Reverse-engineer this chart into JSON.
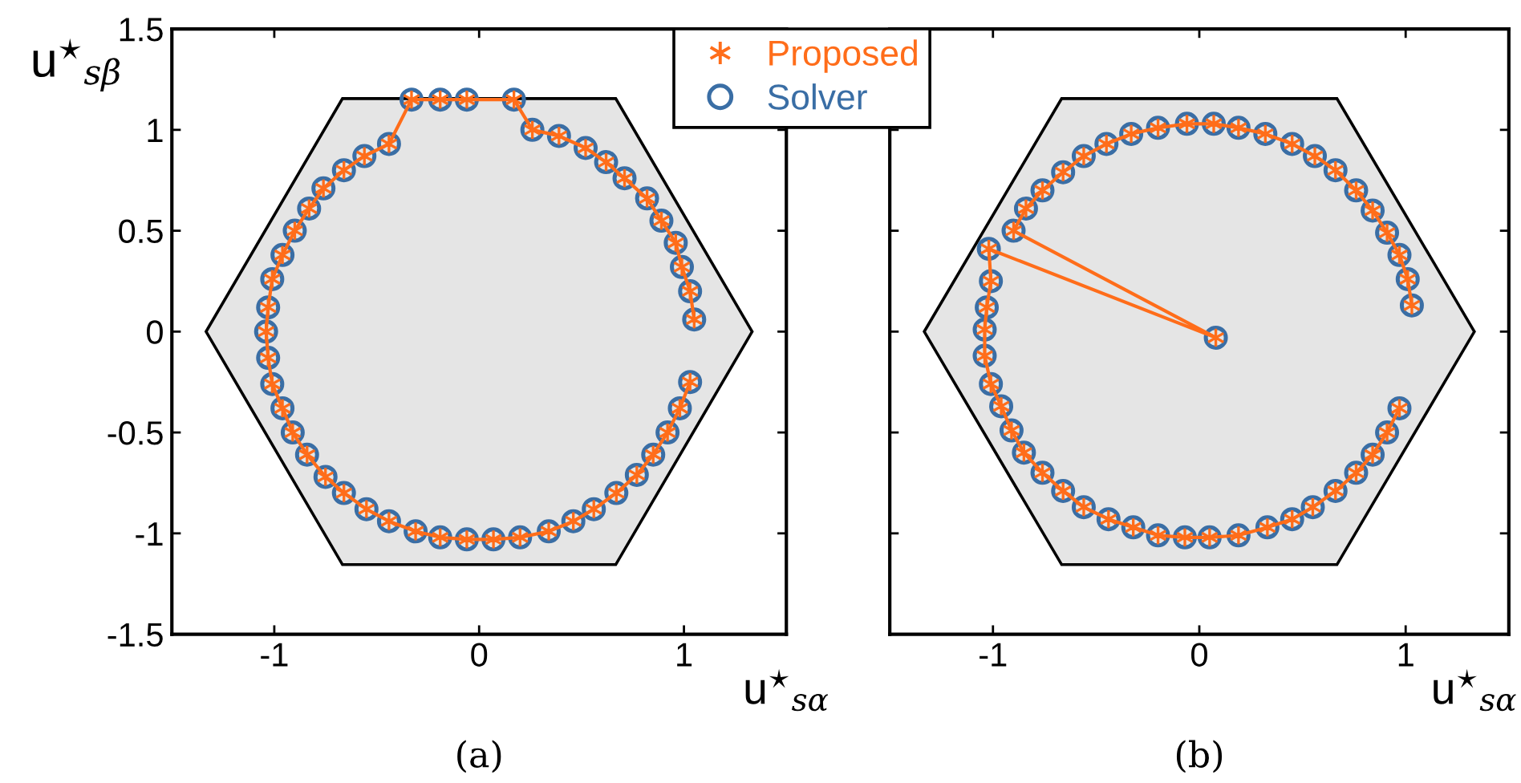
{
  "chart_data": [
    {
      "type": "scatter",
      "xlabel": "u$^{⋆}$$_{sα}$",
      "ylabel": "u$^{⋆}$$_{sβ}$",
      "annotations": [
        "(a)"
      ],
      "xlim": [
        -1.5,
        1.5
      ],
      "ylim": [
        -1.5,
        1.5
      ],
      "xticks": [
        -1,
        0,
        1
      ],
      "yticks": [
        -1.5,
        -1,
        -0.5,
        0,
        0.5,
        1,
        1.5
      ],
      "grid": false,
      "legend": "top right",
      "series": [
        {
          "type": "area",
          "color": "#e5e5e5",
          "x": [
            1.333,
            0.667,
            -0.667,
            -1.333,
            -0.667,
            0.667,
            1.333
          ],
          "values": [
            0,
            1.155,
            1.155,
            0,
            -1.155,
            -1.155,
            0
          ]
        },
        {
          "name": "Proposed",
          "type": "line",
          "marker": "cross",
          "color": "#ff6d1a",
          "x": [
            1.05,
            1.03,
            0.99,
            0.96,
            0.89,
            0.82,
            0.71,
            0.62,
            0.52,
            0.39,
            0.26,
            0.17,
            -0.06,
            -0.19,
            -0.33,
            -0.44,
            -0.56,
            -0.66,
            -0.76,
            -0.83,
            -0.9,
            -0.96,
            -1.01,
            -1.03,
            -1.04,
            -1.03,
            -1.01,
            -0.96,
            -0.91,
            -0.84,
            -0.75,
            -0.66,
            -0.55,
            -0.44,
            -0.31,
            -0.19,
            -0.06,
            0.07,
            0.2,
            0.34,
            0.46,
            0.56,
            0.67,
            0.77,
            0.85,
            0.92,
            0.98,
            1.03
          ],
          "values": [
            0.06,
            0.2,
            0.32,
            0.44,
            0.55,
            0.66,
            0.76,
            0.84,
            0.91,
            0.97,
            1.0,
            1.15,
            1.15,
            1.15,
            1.15,
            0.93,
            0.87,
            0.8,
            0.71,
            0.61,
            0.5,
            0.38,
            0.26,
            0.12,
            0.0,
            -0.13,
            -0.26,
            -0.38,
            -0.5,
            -0.61,
            -0.72,
            -0.8,
            -0.88,
            -0.94,
            -0.99,
            -1.02,
            -1.03,
            -1.03,
            -1.02,
            -0.99,
            -0.94,
            -0.88,
            -0.8,
            -0.71,
            -0.61,
            -0.5,
            -0.38,
            -0.25
          ]
        },
        {
          "name": "Solver",
          "marker": "circle",
          "color": "#3a6ea5",
          "x": [
            1.05,
            1.03,
            0.99,
            0.96,
            0.89,
            0.82,
            0.71,
            0.62,
            0.52,
            0.39,
            0.26,
            0.17,
            -0.06,
            -0.19,
            -0.33,
            -0.44,
            -0.56,
            -0.66,
            -0.76,
            -0.83,
            -0.9,
            -0.96,
            -1.01,
            -1.03,
            -1.04,
            -1.03,
            -1.01,
            -0.96,
            -0.91,
            -0.84,
            -0.75,
            -0.66,
            -0.55,
            -0.44,
            -0.31,
            -0.19,
            -0.06,
            0.07,
            0.2,
            0.34,
            0.46,
            0.56,
            0.67,
            0.77,
            0.85,
            0.92,
            0.98,
            1.03
          ],
          "values": [
            0.06,
            0.2,
            0.32,
            0.44,
            0.55,
            0.66,
            0.76,
            0.84,
            0.91,
            0.97,
            1.0,
            1.15,
            1.15,
            1.15,
            1.15,
            0.93,
            0.87,
            0.8,
            0.71,
            0.61,
            0.5,
            0.38,
            0.26,
            0.12,
            0.0,
            -0.13,
            -0.26,
            -0.38,
            -0.5,
            -0.61,
            -0.72,
            -0.8,
            -0.88,
            -0.94,
            -0.99,
            -1.02,
            -1.03,
            -1.03,
            -1.02,
            -0.99,
            -0.94,
            -0.88,
            -0.8,
            -0.71,
            -0.61,
            -0.5,
            -0.38,
            -0.25
          ]
        }
      ]
    },
    {
      "type": "scatter",
      "xlabel": "u$^{⋆}$$_{sα}$",
      "annotations": [
        "(b)"
      ],
      "xlim": [
        -1.5,
        1.5
      ],
      "ylim": [
        -1.5,
        1.5
      ],
      "xticks": [
        -1,
        0,
        1
      ],
      "yticks": [
        -1.5,
        -1,
        -0.5,
        0,
        0.5,
        1,
        1.5
      ],
      "tick_labels": "x",
      "grid": false,
      "series": [
        {
          "type": "area",
          "color": "#e5e5e5",
          "x": [
            1.333,
            0.667,
            -0.667,
            -1.333,
            -0.667,
            0.667,
            1.333
          ],
          "values": [
            0,
            1.155,
            1.155,
            0,
            -1.155,
            -1.155,
            0
          ]
        },
        {
          "type": "line",
          "marker": "cross",
          "color": "#ff6d1a",
          "x": [
            1.03,
            1.01,
            0.97,
            0.91,
            0.84,
            0.76,
            0.66,
            0.56,
            0.45,
            0.32,
            0.19,
            0.07,
            -0.06,
            -0.2,
            -0.33,
            -0.45,
            -0.56,
            -0.66,
            -0.76,
            -0.84,
            -0.9,
            0.08,
            -1.02,
            -1.01,
            -1.03,
            -1.04,
            -1.04,
            -1.01,
            -0.96,
            -0.91,
            -0.85,
            -0.76,
            -0.66,
            -0.56,
            -0.44,
            -0.32,
            -0.2,
            -0.07,
            0.05,
            0.19,
            0.33,
            0.45,
            0.55,
            0.66,
            0.76,
            0.84,
            0.91,
            0.97
          ],
          "values": [
            0.13,
            0.26,
            0.38,
            0.49,
            0.6,
            0.7,
            0.8,
            0.87,
            0.93,
            0.98,
            1.01,
            1.03,
            1.03,
            1.01,
            0.98,
            0.93,
            0.87,
            0.79,
            0.7,
            0.61,
            0.5,
            -0.03,
            0.41,
            0.25,
            0.12,
            0.01,
            -0.12,
            -0.26,
            -0.37,
            -0.49,
            -0.6,
            -0.7,
            -0.79,
            -0.87,
            -0.93,
            -0.97,
            -1.01,
            -1.02,
            -1.02,
            -1.01,
            -0.97,
            -0.93,
            -0.87,
            -0.79,
            -0.7,
            -0.61,
            -0.5,
            -0.38
          ]
        },
        {
          "marker": "circle",
          "color": "#3a6ea5",
          "x": [
            1.03,
            1.01,
            0.97,
            0.91,
            0.84,
            0.76,
            0.66,
            0.56,
            0.45,
            0.32,
            0.19,
            0.07,
            -0.06,
            -0.2,
            -0.33,
            -0.45,
            -0.56,
            -0.66,
            -0.76,
            -0.84,
            -0.9,
            0.08,
            -1.02,
            -1.01,
            -1.03,
            -1.04,
            -1.04,
            -1.01,
            -0.96,
            -0.91,
            -0.85,
            -0.76,
            -0.66,
            -0.56,
            -0.44,
            -0.32,
            -0.2,
            -0.07,
            0.05,
            0.19,
            0.33,
            0.45,
            0.55,
            0.66,
            0.76,
            0.84,
            0.91,
            0.97
          ],
          "values": [
            0.13,
            0.26,
            0.38,
            0.49,
            0.6,
            0.7,
            0.8,
            0.87,
            0.93,
            0.98,
            1.01,
            1.03,
            1.03,
            1.01,
            0.98,
            0.93,
            0.87,
            0.79,
            0.7,
            0.61,
            0.5,
            -0.03,
            0.41,
            0.25,
            0.12,
            0.01,
            -0.12,
            -0.26,
            -0.37,
            -0.49,
            -0.6,
            -0.7,
            -0.79,
            -0.87,
            -0.93,
            -0.97,
            -1.01,
            -1.02,
            -1.02,
            -1.01,
            -0.97,
            -0.93,
            -0.87,
            -0.79,
            -0.7,
            -0.61,
            -0.5,
            -0.38
          ]
        }
      ]
    }
  ]
}
